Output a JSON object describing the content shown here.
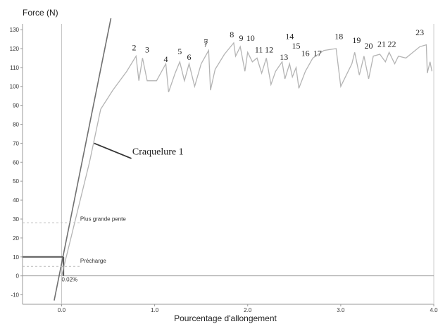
{
  "chart_data": {
    "type": "line",
    "xlabel": "Pourcentage d'allongement",
    "ylabel": "Force (N)",
    "xlim": [
      -0.42,
      4.0
    ],
    "ylim": [
      -15,
      133
    ],
    "x_ticks": [
      "0.0",
      "1.0",
      "2.0",
      "3.0",
      "4.0"
    ],
    "y_ticks": [
      "-10",
      "0",
      "10",
      "20",
      "30",
      "40",
      "50",
      "60",
      "70",
      "80",
      "90",
      "100",
      "110",
      "120",
      "130"
    ],
    "grid": false,
    "colors": {
      "curve": "#b4b4b4",
      "slope_line": "#707070",
      "axes": "#999999",
      "preload": "#555555"
    },
    "series": [
      {
        "x": [
          0.0,
          0.3,
          0.42,
          0.55,
          0.7,
          0.8,
          0.83,
          0.87,
          0.92,
          1.02,
          1.12,
          1.15,
          1.22,
          1.27,
          1.32,
          1.37,
          1.43,
          1.5,
          1.58,
          1.6,
          1.65,
          1.75,
          1.85,
          1.87,
          1.92,
          1.97,
          2.0,
          2.05,
          2.1,
          2.15,
          2.2,
          2.25,
          2.3,
          2.37,
          2.4,
          2.45,
          2.48,
          2.52,
          2.55,
          2.62,
          2.7,
          2.82,
          2.95,
          3.0,
          3.12,
          3.15,
          3.2,
          3.25,
          3.3,
          3.35,
          3.42,
          3.48,
          3.52,
          3.58,
          3.62,
          3.7,
          3.85,
          3.92,
          3.93,
          3.96,
          3.98
        ],
        "y": [
          0,
          60,
          88,
          98,
          108,
          116,
          103,
          115,
          103,
          103,
          112,
          97,
          107,
          113,
          103,
          112,
          100,
          112,
          119,
          98,
          109,
          117,
          123,
          116,
          121,
          108,
          118,
          113,
          115,
          107,
          115,
          101,
          108,
          113,
          104,
          112,
          105,
          110,
          99,
          108,
          115,
          119,
          120,
          100,
          112,
          118,
          106,
          116,
          104,
          116,
          117,
          113,
          118,
          112,
          116,
          115,
          121,
          122,
          107,
          113,
          108
        ]
      }
    ],
    "slope_line": {
      "x": [
        -0.08,
        0.53
      ],
      "y": [
        -13,
        136
      ]
    },
    "peak_labels": [
      {
        "text": "2",
        "x": 0.78,
        "y": 119
      },
      {
        "text": "3",
        "x": 0.92,
        "y": 118
      },
      {
        "text": "4",
        "x": 1.12,
        "y": 113
      },
      {
        "text": "5",
        "x": 1.27,
        "y": 117
      },
      {
        "text": "6",
        "x": 1.37,
        "y": 114
      },
      {
        "text": "7",
        "x": 1.55,
        "y": 122
      },
      {
        "text": "7",
        "x": 1.55,
        "y": 121
      },
      {
        "text": "8",
        "x": 1.83,
        "y": 126
      },
      {
        "text": "9",
        "x": 1.93,
        "y": 124
      },
      {
        "text": "10",
        "x": 2.03,
        "y": 124
      },
      {
        "text": "11",
        "x": 2.12,
        "y": 118
      },
      {
        "text": "12",
        "x": 2.23,
        "y": 118
      },
      {
        "text": "13",
        "x": 2.39,
        "y": 114
      },
      {
        "text": "14",
        "x": 2.45,
        "y": 125
      },
      {
        "text": "15",
        "x": 2.52,
        "y": 120
      },
      {
        "text": "16",
        "x": 2.62,
        "y": 116
      },
      {
        "text": "17",
        "x": 2.75,
        "y": 116
      },
      {
        "text": "18",
        "x": 2.98,
        "y": 125
      },
      {
        "text": "19",
        "x": 3.17,
        "y": 123
      },
      {
        "text": "20",
        "x": 3.3,
        "y": 120
      },
      {
        "text": "21",
        "x": 3.44,
        "y": 121
      },
      {
        "text": "22",
        "x": 3.55,
        "y": 121
      },
      {
        "text": "23",
        "x": 3.85,
        "y": 127
      }
    ],
    "annotations": [
      {
        "text": "Craquelure 1",
        "x": 0.76,
        "y": 64,
        "line_from": [
          0.35,
          70
        ],
        "line_to": [
          0.75,
          62
        ]
      },
      {
        "text": "Plus grande pente",
        "x": 0.2,
        "y": 29
      },
      {
        "text": "Précharge",
        "x": 0.2,
        "y": 7
      },
      {
        "text": "0.02%",
        "x": 0.0,
        "y": -3
      }
    ],
    "preload": {
      "value": 10,
      "x": 0.02
    }
  }
}
